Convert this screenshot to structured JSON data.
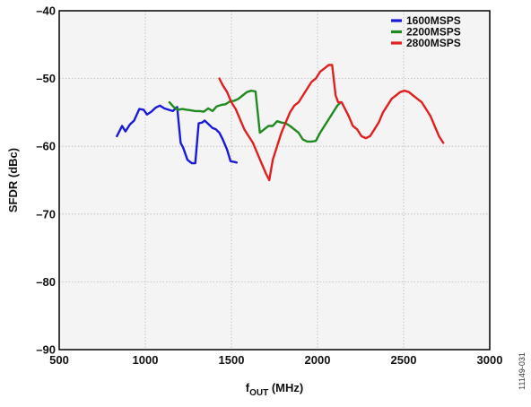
{
  "chart_data": {
    "type": "line",
    "xlabel_main": "f",
    "xlabel_sub": "OUT",
    "xlabel_tail": " (MHz)",
    "ylabel": "SFDR (dBc)",
    "xlim": [
      500,
      3000
    ],
    "ylim": [
      -90,
      -40
    ],
    "x_ticks": [
      500,
      1000,
      1500,
      2000,
      2500,
      3000
    ],
    "y_ticks": [
      -40,
      -50,
      -60,
      -70,
      -80,
      -90
    ],
    "x_tick_labels": [
      "500",
      "1000",
      "1500",
      "2000",
      "2500",
      "3000"
    ],
    "y_tick_labels": [
      "–40",
      "–50",
      "–60",
      "–70",
      "–80",
      "–90"
    ],
    "grid": true,
    "legend_position": "top-right",
    "figure_id": "11149-031",
    "series": [
      {
        "name": "1600MSPS",
        "color": "#1a1adb",
        "x": [
          835,
          865,
          885,
          910,
          935,
          965,
          990,
          1010,
          1035,
          1060,
          1085,
          1110,
          1135,
          1160,
          1185,
          1205,
          1220,
          1245,
          1270,
          1290,
          1310,
          1330,
          1345,
          1370,
          1390,
          1410,
          1430,
          1450,
          1475,
          1495,
          1515,
          1530
        ],
        "y": [
          -58.5,
          -57,
          -57.8,
          -56.8,
          -56.2,
          -54.5,
          -54.6,
          -55.3,
          -54.9,
          -54.3,
          -54.0,
          -54.4,
          -54.6,
          -54.8,
          -54.2,
          -59.5,
          -60.2,
          -62.0,
          -62.5,
          -62.5,
          -56.6,
          -56.5,
          -56.2,
          -56.8,
          -57.3,
          -57.5,
          -58.0,
          -59.0,
          -60.5,
          -62.2,
          -62.3,
          -62.4
        ],
        "ylim_note": ""
      },
      {
        "name": "2200MSPS",
        "color": "#1f8a1f",
        "x": [
          1140,
          1165,
          1190,
          1215,
          1240,
          1265,
          1290,
          1315,
          1340,
          1365,
          1390,
          1415,
          1440,
          1465,
          1490,
          1515,
          1540,
          1565,
          1590,
          1615,
          1640,
          1665,
          1690,
          1715,
          1740,
          1765,
          1790,
          1815,
          1840,
          1865,
          1890,
          1915,
          1940,
          1965,
          1990,
          2015,
          2040,
          2065,
          2090,
          2115,
          2135
        ],
        "y": [
          -53.5,
          -54.2,
          -54.6,
          -54.5,
          -54.6,
          -54.7,
          -54.8,
          -54.8,
          -54.9,
          -54.4,
          -54.8,
          -54.1,
          -53.9,
          -53.8,
          -53.4,
          -53.3,
          -53.0,
          -52.5,
          -52.0,
          -51.8,
          -51.9,
          -58.0,
          -57.5,
          -57.0,
          -57.0,
          -56.3,
          -56.5,
          -56.6,
          -57.0,
          -57.5,
          -58.0,
          -59.0,
          -59.3,
          -59.3,
          -59.2,
          -58.0,
          -57.0,
          -56.0,
          -55.0,
          -54.0,
          -53.5
        ],
        "ylim_note": ""
      },
      {
        "name": "2800MSPS",
        "color": "#e02020",
        "x": [
          1430,
          1450,
          1475,
          1500,
          1525,
          1550,
          1575,
          1600,
          1625,
          1650,
          1675,
          1700,
          1720,
          1740,
          1765,
          1790,
          1815,
          1840,
          1865,
          1890,
          1915,
          1940,
          1965,
          1990,
          2015,
          2040,
          2065,
          2085,
          2105,
          2120,
          2140,
          2160,
          2180,
          2205,
          2230,
          2255,
          2280,
          2305,
          2330,
          2355,
          2380,
          2405,
          2430,
          2455,
          2480,
          2505,
          2530,
          2555,
          2580,
          2605,
          2630,
          2655,
          2680,
          2705,
          2730
        ],
        "y": [
          -50.0,
          -51.0,
          -52.0,
          -53.5,
          -54.5,
          -56.0,
          -57.5,
          -58.5,
          -59.5,
          -61.0,
          -62.5,
          -64.0,
          -65.0,
          -62.0,
          -60.0,
          -58.0,
          -56.5,
          -55.0,
          -54.0,
          -53.5,
          -52.5,
          -51.5,
          -50.5,
          -50.0,
          -49.0,
          -48.5,
          -48.0,
          -48.0,
          -52.5,
          -53.5,
          -53.5,
          -54.5,
          -55.5,
          -57.0,
          -57.5,
          -58.5,
          -58.8,
          -58.5,
          -57.5,
          -56.5,
          -55.0,
          -54.0,
          -53.0,
          -52.5,
          -52.0,
          -51.8,
          -52.0,
          -52.5,
          -53.0,
          -53.5,
          -54.5,
          -55.5,
          -57.0,
          -58.5,
          -59.5
        ],
        "ylim_note": ""
      }
    ]
  }
}
